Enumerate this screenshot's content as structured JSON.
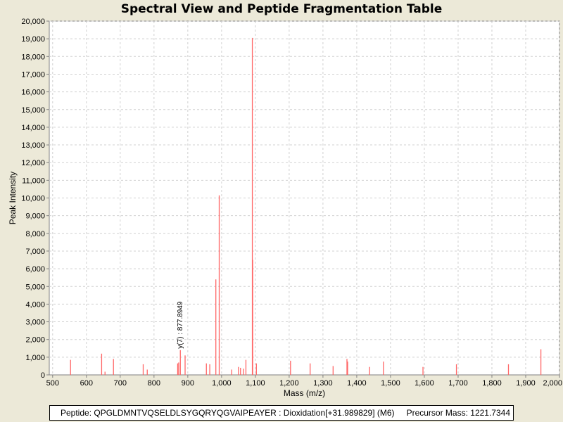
{
  "chart_data": {
    "type": "bar",
    "title": "Spectral View and Peptide Fragmentation Table",
    "xlabel": "Mass (m/z)",
    "ylabel": "Peak Intensity",
    "xlim": [
      490,
      2000
    ],
    "ylim": [
      0,
      20000
    ],
    "xticks": [
      500,
      600,
      700,
      800,
      900,
      1000,
      1100,
      1200,
      1300,
      1400,
      1500,
      1600,
      1700,
      1800,
      1900,
      2000
    ],
    "xtick_labels": [
      "500",
      "600",
      "700",
      "800",
      "900",
      "1,000",
      "1,100",
      "1,200",
      "1,300",
      "1,400",
      "1,500",
      "1,600",
      "1,700",
      "1,800",
      "1,900",
      "2,000"
    ],
    "yticks": [
      0,
      1000,
      2000,
      3000,
      4000,
      5000,
      6000,
      7000,
      8000,
      9000,
      10000,
      11000,
      12000,
      13000,
      14000,
      15000,
      16000,
      17000,
      18000,
      19000,
      20000
    ],
    "ytick_labels": [
      "0",
      "1,000",
      "2,000",
      "3,000",
      "4,000",
      "5,000",
      "6,000",
      "7,000",
      "8,000",
      "9,000",
      "10,000",
      "11,000",
      "12,000",
      "13,000",
      "14,000",
      "15,000",
      "16,000",
      "17,000",
      "18,000",
      "19,000",
      "20,000"
    ],
    "grid": true,
    "color": "#ff6666",
    "peaks": [
      {
        "x": 553,
        "y": 850
      },
      {
        "x": 645,
        "y": 1200
      },
      {
        "x": 655,
        "y": 180
      },
      {
        "x": 680,
        "y": 900
      },
      {
        "x": 768,
        "y": 600
      },
      {
        "x": 780,
        "y": 300
      },
      {
        "x": 870,
        "y": 650
      },
      {
        "x": 873,
        "y": 700
      },
      {
        "x": 877.8949,
        "y": 1400
      },
      {
        "x": 892,
        "y": 1100
      },
      {
        "x": 955,
        "y": 650
      },
      {
        "x": 965,
        "y": 600
      },
      {
        "x": 983,
        "y": 5400
      },
      {
        "x": 993,
        "y": 10150
      },
      {
        "x": 1030,
        "y": 300
      },
      {
        "x": 1050,
        "y": 450
      },
      {
        "x": 1056,
        "y": 400
      },
      {
        "x": 1065,
        "y": 350
      },
      {
        "x": 1072,
        "y": 850
      },
      {
        "x": 1091,
        "y": 19050
      },
      {
        "x": 1092,
        "y": 6500
      },
      {
        "x": 1103,
        "y": 650
      },
      {
        "x": 1204,
        "y": 800
      },
      {
        "x": 1262,
        "y": 650
      },
      {
        "x": 1330,
        "y": 500
      },
      {
        "x": 1371,
        "y": 900
      },
      {
        "x": 1373,
        "y": 750
      },
      {
        "x": 1438,
        "y": 450
      },
      {
        "x": 1479,
        "y": 750
      },
      {
        "x": 1596,
        "y": 450
      },
      {
        "x": 1695,
        "y": 600
      },
      {
        "x": 1849,
        "y": 600
      },
      {
        "x": 1945,
        "y": 1450
      }
    ],
    "annotations": [
      {
        "x": 877.8949,
        "y": 1400,
        "text": "y(7) : 877.8949"
      }
    ]
  },
  "footer": {
    "peptide": "Peptide: QPGLDMNTVQSELDLSYGQRYQGVAIPEAYER : Dioxidation[+31.989829] (M6)",
    "precursor": "Precursor Mass: 1221.7344"
  }
}
